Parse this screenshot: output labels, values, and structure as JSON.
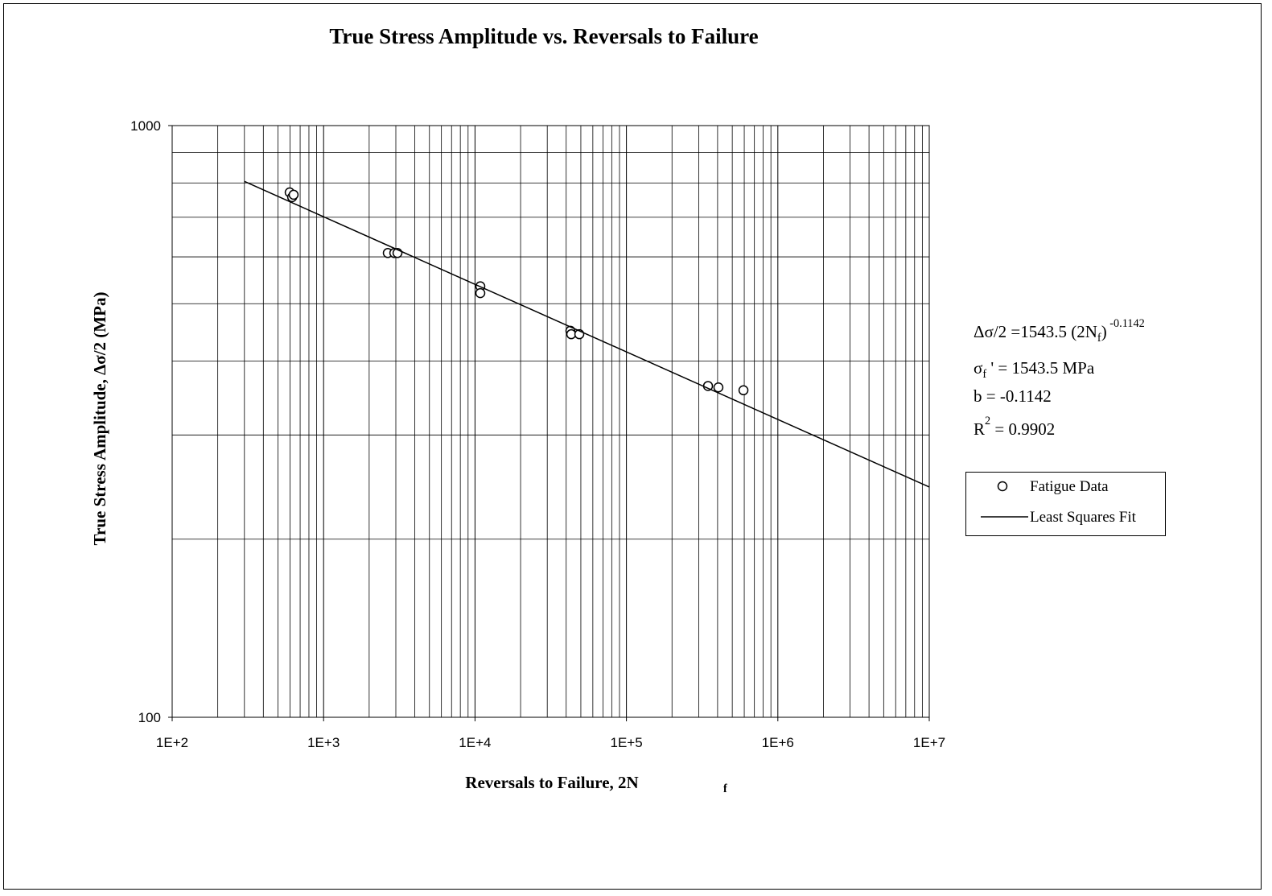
{
  "chart_data": {
    "type": "scatter",
    "title": "True Stress Amplitude vs. Reversals to Failure",
    "xlabel": [
      {
        "text": "Reversals to Failure, 2N"
      },
      {
        "text": "f",
        "style": "sub"
      }
    ],
    "ylabel": "True Stress Amplitude, Δσ/2 (MPa)",
    "xscale": "log",
    "yscale": "log",
    "grid": true,
    "legend": "right",
    "xlim": [
      100,
      10000000
    ],
    "xticks": [
      {
        "value": 100,
        "label": "1E+2"
      },
      {
        "value": 1000,
        "label": "1E+3"
      },
      {
        "value": 10000,
        "label": "1E+4"
      },
      {
        "value": 100000,
        "label": "1E+5"
      },
      {
        "value": 1000000,
        "label": "1E+6"
      },
      {
        "value": 10000000,
        "label": "1E+7"
      }
    ],
    "xminor": [
      200,
      300,
      400,
      500,
      600,
      700,
      800,
      900,
      2000,
      3000,
      4000,
      5000,
      6000,
      7000,
      8000,
      9000,
      20000,
      30000,
      40000,
      50000,
      60000,
      70000,
      80000,
      90000,
      200000,
      300000,
      400000,
      500000,
      600000,
      700000,
      800000,
      900000,
      2000000,
      3000000,
      4000000,
      5000000,
      6000000,
      7000000,
      8000000,
      9000000
    ],
    "ylim": [
      100,
      1000
    ],
    "yticks": [
      100,
      1000
    ],
    "yminor": [
      200,
      300,
      400,
      500,
      600,
      700,
      800,
      900
    ],
    "series": [
      {
        "name": "Fatigue Data",
        "color": "#000000",
        "marker": "open-circle",
        "x": [
          597,
          620,
          634,
          2655,
          2931,
          3076,
          10840,
          10840,
          42660,
          43200,
          48860,
          345900,
          405000,
          592800
        ],
        "values": [
          771,
          757,
          764,
          609,
          609,
          609,
          535,
          521,
          450,
          444,
          444,
          363,
          361,
          357
        ]
      },
      {
        "name": "Least Squares Fit",
        "color": "#000000",
        "type": "line",
        "x": [
          300,
          10000000
        ],
        "values": [
          804.7,
          245.0
        ]
      }
    ],
    "annotations": [
      [
        {
          "text": "Δσ/2 =1543.5 (2N"
        },
        {
          "text": "f",
          "style": "sub"
        },
        {
          "text": ")"
        },
        {
          "text": " -0.1142",
          "style": "sup"
        }
      ],
      [
        {
          "text": "σ"
        },
        {
          "text": "f",
          "style": "sub"
        },
        {
          "text": " ' = 1543.5 MPa"
        }
      ],
      [
        {
          "text": "b = -0.1142"
        }
      ],
      [
        {
          "text": "R"
        },
        {
          "text": "2",
          "style": "sup"
        },
        {
          "text": " = 0.9902"
        }
      ]
    ]
  }
}
